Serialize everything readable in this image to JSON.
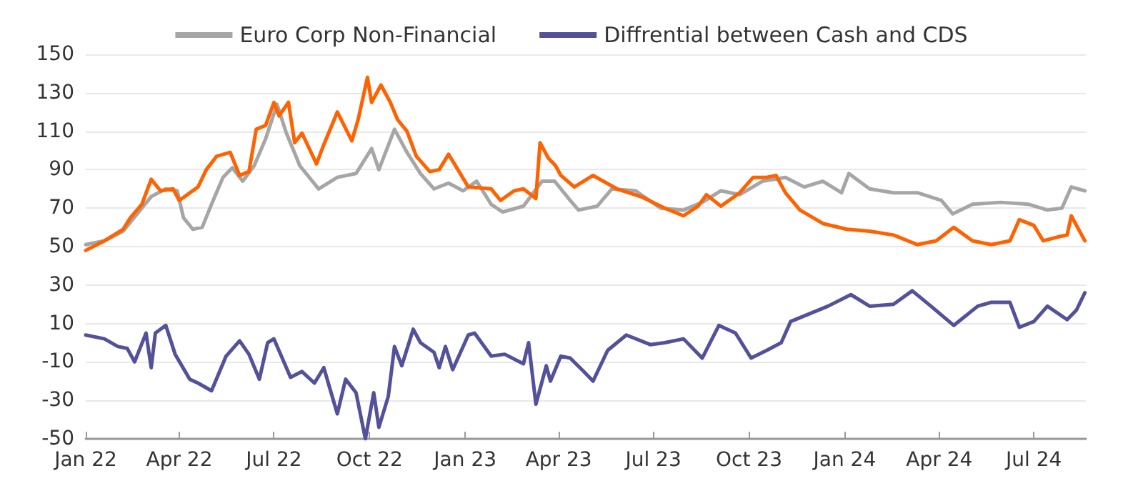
{
  "chart_data": {
    "type": "line",
    "legend": "top",
    "grid": "y",
    "marker": "none",
    "line_style": "solid",
    "xlim": [
      "2022-01-01",
      "2024-08-20"
    ],
    "xticks": [
      {
        "value": "2022-01-01",
        "label": "Jan 22"
      },
      {
        "value": "2022-04-01",
        "label": "Apr 22"
      },
      {
        "value": "2022-07-01",
        "label": "Jul 22"
      },
      {
        "value": "2022-10-01",
        "label": "Oct 22"
      },
      {
        "value": "2023-01-01",
        "label": "Jan 23"
      },
      {
        "value": "2023-04-01",
        "label": "Apr 23"
      },
      {
        "value": "2023-07-01",
        "label": "Jul 23"
      },
      {
        "value": "2023-10-01",
        "label": "Oct 23"
      },
      {
        "value": "2024-01-01",
        "label": "Jan 24"
      },
      {
        "value": "2024-04-01",
        "label": "Apr 24"
      },
      {
        "value": "2024-07-01",
        "label": "Jul 24"
      }
    ],
    "ylim": [
      -50,
      150
    ],
    "yticks": [
      -50,
      -30,
      -10,
      10,
      30,
      50,
      70,
      90,
      110,
      130,
      150
    ],
    "series": [
      {
        "name": "Euro Corp Non-Financial",
        "color": "#a6a6a6",
        "x": [
          "2022-01-01",
          "2022-01-19",
          "2022-02-06",
          "2022-02-24",
          "2022-03-05",
          "2022-03-19",
          "2022-03-30",
          "2022-04-05",
          "2022-04-14",
          "2022-04-23",
          "2022-05-02",
          "2022-05-13",
          "2022-05-22",
          "2022-06-01",
          "2022-06-12",
          "2022-06-23",
          "2022-07-04",
          "2022-07-13",
          "2022-07-26",
          "2022-08-13",
          "2022-08-31",
          "2022-09-18",
          "2022-10-03",
          "2022-10-10",
          "2022-10-25",
          "2022-11-06",
          "2022-11-19",
          "2022-12-02",
          "2022-12-16",
          "2022-12-30",
          "2023-01-12",
          "2023-01-26",
          "2023-02-06",
          "2023-02-26",
          "2023-03-16",
          "2023-03-28",
          "2023-04-12",
          "2023-04-20",
          "2023-05-08",
          "2023-05-22",
          "2023-06-14",
          "2023-07-08",
          "2023-07-30",
          "2023-08-17",
          "2023-09-04",
          "2023-09-22",
          "2023-10-14",
          "2023-11-05",
          "2023-11-23",
          "2023-12-11",
          "2023-12-29",
          "2024-01-05",
          "2024-01-25",
          "2024-02-17",
          "2024-03-11",
          "2024-04-03",
          "2024-04-14",
          "2024-05-03",
          "2024-05-30",
          "2024-06-26",
          "2024-07-14",
          "2024-07-28",
          "2024-08-06",
          "2024-08-19"
        ],
        "values": [
          51,
          53,
          58,
          70,
          76,
          80,
          79,
          65,
          59,
          60,
          72,
          86,
          91,
          84,
          92,
          106,
          124,
          109,
          92,
          80,
          86,
          88,
          101,
          90,
          111,
          99,
          88,
          80,
          83,
          79,
          84,
          72,
          68,
          71,
          84,
          84,
          74,
          69,
          71,
          80,
          79,
          70,
          69,
          73,
          79,
          77,
          84,
          86,
          81,
          84,
          78,
          88,
          80,
          78,
          78,
          74,
          67,
          72,
          73,
          72,
          69,
          70,
          81,
          79
        ]
      },
      {
        "color": "#ff6200",
        "x": [
          "2022-01-01",
          "2022-01-19",
          "2022-02-06",
          "2022-02-13",
          "2022-02-24",
          "2022-03-05",
          "2022-03-14",
          "2022-03-26",
          "2022-04-01",
          "2022-04-19",
          "2022-04-27",
          "2022-05-07",
          "2022-05-20",
          "2022-05-29",
          "2022-06-07",
          "2022-06-14",
          "2022-06-23",
          "2022-07-01",
          "2022-07-06",
          "2022-07-15",
          "2022-07-21",
          "2022-07-28",
          "2022-08-11",
          "2022-08-18",
          "2022-08-31",
          "2022-09-14",
          "2022-09-20",
          "2022-09-29",
          "2022-10-03",
          "2022-10-12",
          "2022-10-21",
          "2022-10-28",
          "2022-11-06",
          "2022-11-15",
          "2022-11-28",
          "2022-12-07",
          "2022-12-16",
          "2022-12-25",
          "2023-01-04",
          "2023-01-26",
          "2023-02-04",
          "2023-02-17",
          "2023-02-26",
          "2023-03-10",
          "2023-03-14",
          "2023-03-22",
          "2023-03-29",
          "2023-04-03",
          "2023-04-16",
          "2023-05-04",
          "2023-05-27",
          "2023-06-19",
          "2023-07-12",
          "2023-07-30",
          "2023-08-13",
          "2023-08-21",
          "2023-09-04",
          "2023-09-22",
          "2023-10-05",
          "2023-10-18",
          "2023-10-27",
          "2023-11-05",
          "2023-11-19",
          "2023-12-11",
          "2024-01-03",
          "2024-01-25",
          "2024-02-17",
          "2024-03-11",
          "2024-03-29",
          "2024-04-15",
          "2024-05-03",
          "2024-05-21",
          "2024-06-08",
          "2024-06-17",
          "2024-07-01",
          "2024-07-10",
          "2024-07-24",
          "2024-08-02",
          "2024-08-06",
          "2024-08-15",
          "2024-08-19"
        ],
        "values": [
          48,
          53,
          59,
          65,
          72,
          85,
          79,
          80,
          74,
          81,
          90,
          97,
          99,
          87,
          89,
          111,
          113,
          125,
          118,
          125,
          104,
          109,
          93,
          103,
          120,
          105,
          116,
          138,
          125,
          134,
          125,
          116,
          110,
          97,
          89,
          90,
          98,
          90,
          81,
          80,
          74,
          79,
          80,
          75,
          104,
          96,
          92,
          87,
          81,
          87,
          80,
          76,
          70,
          66,
          71,
          77,
          71,
          78,
          86,
          86,
          87,
          78,
          69,
          62,
          59,
          58,
          56,
          51,
          53,
          60,
          53,
          51,
          53,
          64,
          61,
          53,
          55,
          56,
          66,
          57,
          53
        ]
      },
      {
        "name": "Diffrential between Cash and CDS",
        "color": "#525199",
        "x": [
          "2022-01-01",
          "2022-01-19",
          "2022-02-01",
          "2022-02-10",
          "2022-02-17",
          "2022-02-28",
          "2022-03-05",
          "2022-03-09",
          "2022-03-19",
          "2022-03-28",
          "2022-04-11",
          "2022-04-19",
          "2022-05-02",
          "2022-05-16",
          "2022-05-29",
          "2022-06-07",
          "2022-06-17",
          "2022-06-25",
          "2022-07-01",
          "2022-07-17",
          "2022-07-28",
          "2022-08-09",
          "2022-08-18",
          "2022-08-31",
          "2022-09-08",
          "2022-09-18",
          "2022-09-27",
          "2022-10-05",
          "2022-10-10",
          "2022-10-19",
          "2022-10-25",
          "2022-11-01",
          "2022-11-12",
          "2022-11-19",
          "2022-12-02",
          "2022-12-07",
          "2022-12-13",
          "2022-12-20",
          "2023-01-04",
          "2023-01-10",
          "2023-01-26",
          "2023-02-08",
          "2023-02-26",
          "2023-03-03",
          "2023-03-10",
          "2023-03-20",
          "2023-03-24",
          "2023-04-03",
          "2023-04-12",
          "2023-04-25",
          "2023-05-04",
          "2023-05-18",
          "2023-06-05",
          "2023-06-28",
          "2023-07-12",
          "2023-07-30",
          "2023-08-17",
          "2023-09-02",
          "2023-09-18",
          "2023-10-03",
          "2023-10-18",
          "2023-11-01",
          "2023-11-10",
          "2023-11-28",
          "2023-12-16",
          "2024-01-07",
          "2024-01-25",
          "2024-02-17",
          "2024-03-06",
          "2024-03-24",
          "2024-04-15",
          "2024-05-08",
          "2024-05-21",
          "2024-06-08",
          "2024-06-17",
          "2024-07-01",
          "2024-07-14",
          "2024-08-02",
          "2024-08-11",
          "2024-08-19"
        ],
        "values": [
          4,
          2,
          -2,
          -3,
          -10,
          5,
          -13,
          5,
          9,
          -6,
          -19,
          -21,
          -25,
          -7,
          1,
          -6,
          -19,
          0,
          2,
          -18,
          -15,
          -21,
          -13,
          -37,
          -19,
          -26,
          -50,
          -26,
          -44,
          -28,
          -2,
          -12,
          7,
          0,
          -5,
          -13,
          -2,
          -14,
          4,
          5,
          -7,
          -6,
          -11,
          0,
          -32,
          -12,
          -20,
          -7,
          -8,
          -15,
          -20,
          -4,
          4,
          -1,
          0,
          2,
          -8,
          9,
          5,
          -8,
          -4,
          0,
          11,
          15,
          19,
          25,
          19,
          20,
          27,
          19,
          9,
          19,
          21,
          21,
          8,
          11,
          19,
          12,
          17,
          26
        ]
      }
    ]
  }
}
